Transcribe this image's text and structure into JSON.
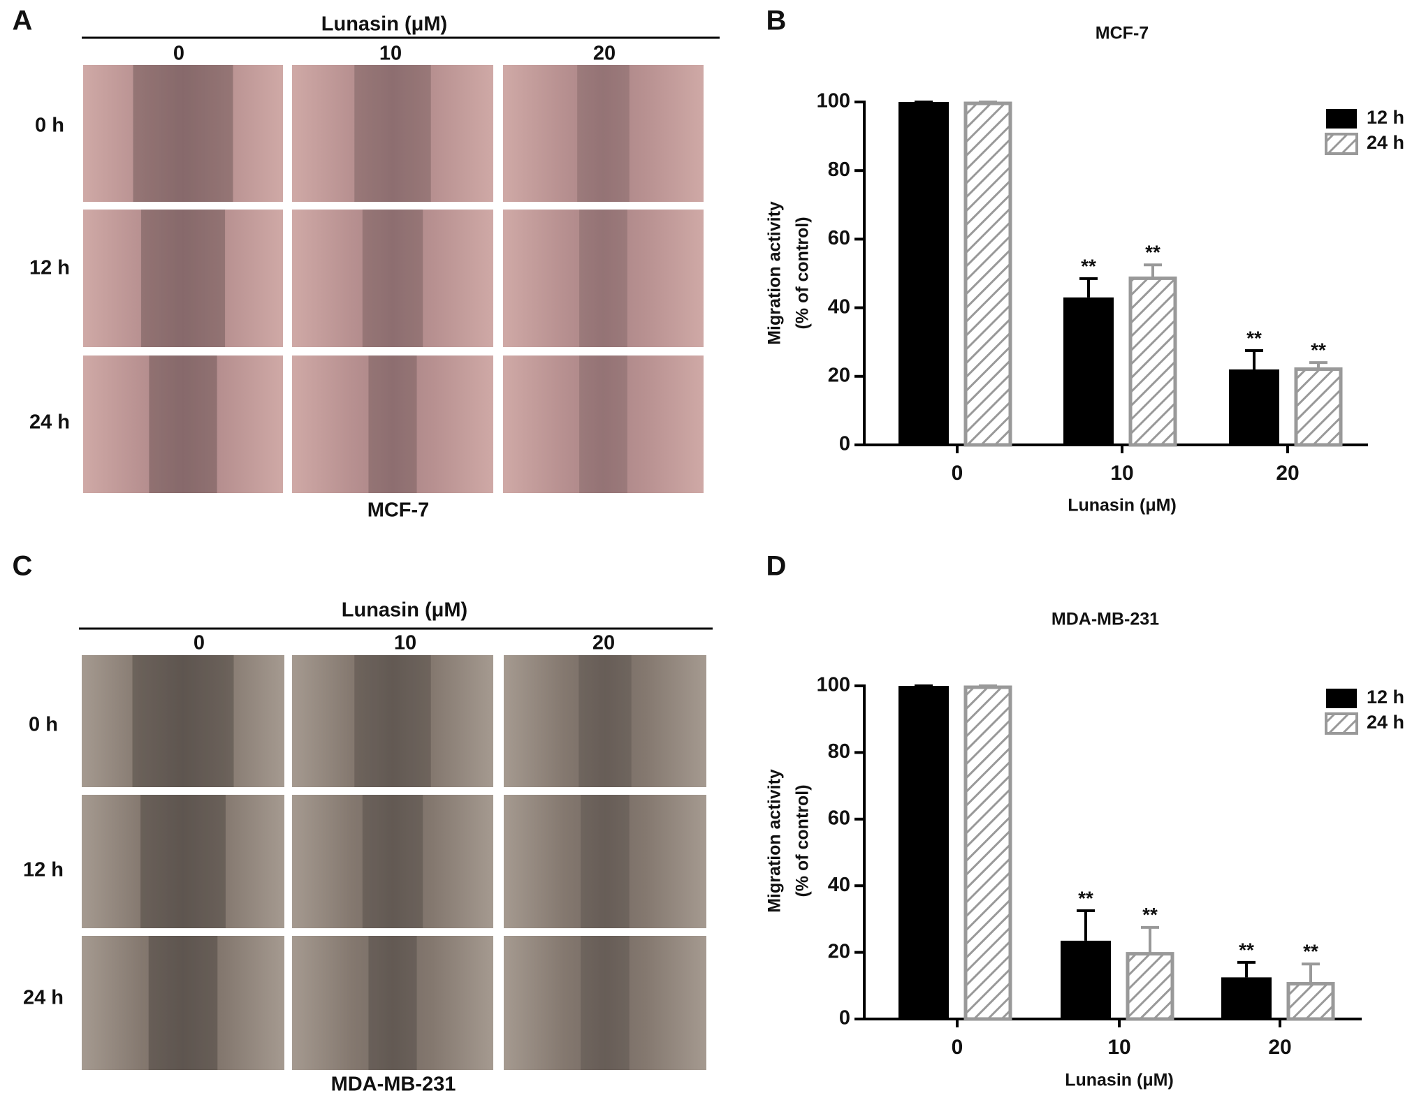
{
  "image_panels": [
    {
      "letter": "A",
      "header": "Lunasin (μM)",
      "columns": [
        "0",
        "10",
        "20"
      ],
      "rows": [
        "0 h",
        "12 h",
        "24 h"
      ],
      "caption": "MCF-7"
    },
    {
      "letter": "C",
      "header": "Lunasin (μM)",
      "columns": [
        "0",
        "10",
        "20"
      ],
      "rows": [
        "0 h",
        "12 h",
        "24 h"
      ],
      "caption": "MDA-MB-231"
    }
  ],
  "chart_data": [
    {
      "letter": "B",
      "type": "bar",
      "title": "MCF-7",
      "x_label": "Lunasin (μM)",
      "y_label": [
        "Migration activity",
        "(% of control)"
      ],
      "categories": [
        "0",
        "10",
        "20"
      ],
      "series": [
        {
          "name": "12 h",
          "color": "#000000",
          "fill": "solid",
          "values": [
            100,
            43,
            22
          ],
          "errors": [
            0,
            5.5,
            5.5
          ],
          "annotations": [
            null,
            "**",
            "**"
          ]
        },
        {
          "name": "24 h",
          "color": "#999999",
          "fill": "hatch",
          "values": [
            100,
            49,
            22.5
          ],
          "errors": [
            0,
            3.5,
            1.5
          ],
          "annotations": [
            null,
            "**",
            "**"
          ]
        }
      ],
      "ylim": [
        0,
        100
      ],
      "yticks": [
        0,
        20,
        40,
        60,
        80,
        100
      ],
      "legend": "right"
    },
    {
      "letter": "D",
      "type": "bar",
      "title": "MDA-MB-231",
      "x_label": "Lunasin (μM)",
      "y_label": [
        "Migration activity",
        "(% of control)"
      ],
      "categories": [
        "0",
        "10",
        "20"
      ],
      "series": [
        {
          "name": "12 h",
          "color": "#000000",
          "fill": "solid",
          "values": [
            100,
            23.5,
            12.5
          ],
          "errors": [
            0,
            9,
            4.5
          ],
          "annotations": [
            null,
            "**",
            "**"
          ]
        },
        {
          "name": "24 h",
          "color": "#999999",
          "fill": "hatch",
          "values": [
            100,
            20,
            11
          ],
          "errors": [
            0,
            7.5,
            5.5
          ],
          "annotations": [
            null,
            "**",
            "**"
          ]
        }
      ],
      "ylim": [
        0,
        100
      ],
      "yticks": [
        0,
        20,
        40,
        60,
        80,
        100
      ],
      "legend": "right"
    }
  ]
}
